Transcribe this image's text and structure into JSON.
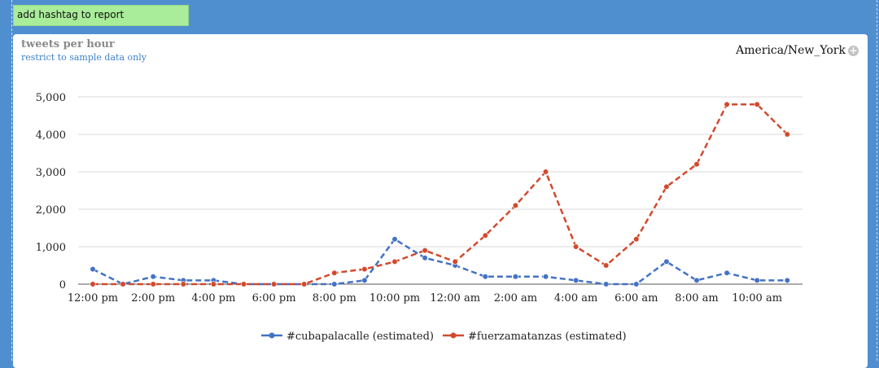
{
  "report": {
    "add_hashtag_label": "add hashtag to report"
  },
  "panel": {
    "title": "tweets per hour",
    "subtitle": "restrict to sample data only",
    "timezone": "America/New_York",
    "timezone_icon": "plus-circle-icon"
  },
  "chart_data": {
    "type": "line",
    "x_tick_labels": [
      "12:00 pm",
      "2:00 pm",
      "4:00 pm",
      "6:00 pm",
      "8:00 pm",
      "10:00 pm",
      "12:00 am",
      "2:00 am",
      "4:00 am",
      "6:00 am",
      "8:00 am",
      "10:00 am"
    ],
    "y_ticks": [
      0,
      1000,
      2000,
      3000,
      4000,
      5000
    ],
    "y_tick_labels": [
      "0",
      "1,000",
      "2,000",
      "3,000",
      "4,000",
      "5,000"
    ],
    "ylim": [
      0,
      5000
    ],
    "grid": true,
    "legend_position": "bottom",
    "x": [
      "12:00 pm",
      "1:00 pm",
      "2:00 pm",
      "3:00 pm",
      "4:00 pm",
      "5:00 pm",
      "6:00 pm",
      "7:00 pm",
      "8:00 pm",
      "9:00 pm",
      "10:00 pm",
      "11:00 pm",
      "12:00 am",
      "1:00 am",
      "2:00 am",
      "3:00 am",
      "4:00 am",
      "5:00 am",
      "6:00 am",
      "7:00 am",
      "8:00 am",
      "9:00 am",
      "10:00 am",
      "11:00 am"
    ],
    "series": [
      {
        "name": "#cubapalacalle (estimated)",
        "color": "#4472c4",
        "values": [
          400,
          0,
          200,
          100,
          100,
          0,
          0,
          0,
          0,
          100,
          1200,
          700,
          500,
          200,
          200,
          200,
          100,
          0,
          0,
          600,
          100,
          300,
          100,
          100
        ]
      },
      {
        "name": "#fuerzamatanzas (estimated)",
        "color": "#d14a2e",
        "values": [
          0,
          0,
          0,
          0,
          0,
          0,
          0,
          0,
          300,
          400,
          600,
          900,
          600,
          1300,
          2100,
          3000,
          1000,
          500,
          1200,
          2600,
          3200,
          4800,
          4800,
          4000
        ]
      }
    ]
  }
}
